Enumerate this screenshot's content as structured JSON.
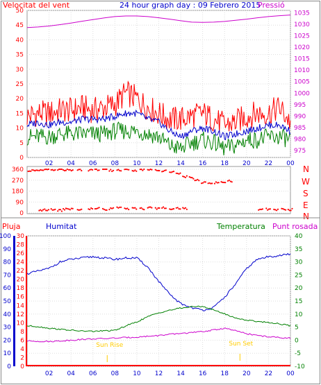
{
  "header": {
    "left_title": "Velocitat del vent",
    "center_title": "24 hour graph day : 09 Febrero 2015",
    "right_title": "Pressió"
  },
  "direction_labels": [
    "N",
    "W",
    "S",
    "E",
    "N"
  ],
  "lower_header": {
    "rain_label": "Pluja",
    "humidity_label": "Humitat",
    "temperature_label": "Temperatura",
    "dew_label": "Punt rosada"
  },
  "annotations": {
    "sunrise": "Sun Rise",
    "sunset": "Sun Set"
  },
  "colors": {
    "wind_gust": "#ff0000",
    "wind_avg": "#0000cc",
    "wind_min": "#008000",
    "pressure": "#cc00cc",
    "direction": "#ff0000",
    "humidity": "#0000cc",
    "temperature": "#008000",
    "dew": "#cc00cc",
    "rain": "#ff0000",
    "sun": "#ffcc00"
  },
  "chart_data": [
    {
      "type": "line",
      "name_hint": "wind-pressure",
      "x_ticks": [
        "02",
        "04",
        "06",
        "08",
        "10",
        "12",
        "14",
        "16",
        "18",
        "20",
        "22",
        "00"
      ],
      "y_left_ticks": [
        0,
        5,
        10,
        15,
        20,
        25,
        30,
        35,
        40,
        45,
        50
      ],
      "y_left_lim": [
        0,
        50
      ],
      "y_right_ticks": [
        975,
        980,
        985,
        990,
        995,
        1000,
        1005,
        1010,
        1015,
        1020,
        1025,
        1030,
        1035
      ],
      "y_right_lim": [
        972,
        1036
      ],
      "hours": [
        0,
        1,
        2,
        3,
        4,
        5,
        6,
        7,
        8,
        9,
        10,
        11,
        12,
        13,
        14,
        15,
        16,
        17,
        18,
        19,
        20,
        21,
        22,
        23,
        24
      ],
      "series": [
        {
          "key": "gust",
          "values": [
            14,
            15,
            15,
            16,
            16,
            17,
            16,
            17,
            18,
            22,
            20,
            17,
            15,
            13,
            13,
            14,
            15,
            13,
            11,
            12,
            14,
            15,
            15,
            17,
            12
          ]
        },
        {
          "key": "avg",
          "values": [
            11,
            12,
            11,
            12,
            12,
            13,
            13,
            13,
            14,
            15,
            15,
            13,
            12,
            9,
            7,
            9,
            10,
            9,
            7,
            8,
            9,
            10,
            11,
            11,
            9
          ]
        },
        {
          "key": "min",
          "values": [
            7,
            7,
            7,
            8,
            8,
            8,
            8,
            8,
            9,
            9,
            9,
            8,
            7,
            4,
            3,
            5,
            6,
            5,
            3,
            4,
            6,
            6,
            7,
            7,
            6
          ]
        },
        {
          "key": "pressure",
          "values": [
            1028.5,
            1028.8,
            1029.2,
            1029.8,
            1030.5,
            1031.3,
            1032,
            1032.7,
            1033.3,
            1033.6,
            1033.6,
            1033.3,
            1032.8,
            1032.2,
            1031.5,
            1030.9,
            1030.8,
            1030.9,
            1031.2,
            1031.7,
            1032.2,
            1032.8,
            1033.3,
            1033.7,
            1034
          ]
        }
      ]
    },
    {
      "type": "scatter",
      "name_hint": "wind-direction",
      "y_ticks": [
        0,
        90,
        180,
        270,
        360
      ],
      "y_lim": [
        0,
        360
      ],
      "hours": [
        0.1,
        0.6,
        1.1,
        1.6,
        2.2,
        2.8,
        3.3,
        3.8,
        4.6,
        5.6,
        6.2,
        6.9,
        7.5,
        8.2,
        8.9,
        9.6,
        10.3,
        11.0,
        11.7,
        12.3,
        13.0,
        13.6,
        14.2,
        14.8,
        15.3,
        15.9,
        16.5,
        17.1,
        17.7,
        18.3,
        19.0,
        19.7,
        20.4,
        21.1,
        21.8,
        22.5,
        23.2,
        23.8
      ],
      "upper": [
        350,
        345,
        352,
        356,
        348,
        358,
        355,
        350,
        356,
        352,
        358,
        355,
        350,
        353,
        356,
        349,
        357,
        360,
        352,
        348,
        340,
        320,
        300,
        290,
        270,
        250,
        245,
        250,
        255,
        262,
        null,
        null,
        null,
        null,
        null,
        null,
        null,
        null
      ],
      "lower": [
        null,
        null,
        20,
        25,
        28,
        20,
        30,
        32,
        28,
        35,
        38,
        30,
        35,
        40,
        33,
        38,
        36,
        42,
        38,
        45,
        30,
        40,
        35,
        null,
        null,
        null,
        null,
        null,
        null,
        null,
        null,
        null,
        null,
        28,
        30,
        25,
        32,
        28
      ]
    },
    {
      "type": "line",
      "name_hint": "humidity-temperature",
      "y_left_ticks": [
        0,
        10,
        20,
        30,
        40,
        50,
        60,
        70,
        80,
        90,
        100
      ],
      "y_left_lim": [
        0,
        100
      ],
      "y_mid_ticks": [
        0,
        2,
        4,
        6,
        8,
        10,
        12,
        14,
        16,
        18,
        20,
        22,
        24,
        26,
        28,
        30
      ],
      "y_right_ticks": [
        -10,
        -5,
        0,
        5,
        10,
        15,
        20,
        25,
        30,
        35,
        40
      ],
      "y_right_lim": [
        -10,
        40
      ],
      "hours": [
        0,
        1,
        2,
        3,
        4,
        5,
        6,
        7,
        8,
        9,
        10,
        11,
        12,
        13,
        14,
        15,
        16,
        17,
        18,
        19,
        20,
        21,
        22,
        23,
        24
      ],
      "series": [
        {
          "key": "humidity",
          "values": [
            71,
            73,
            75,
            80,
            82,
            83,
            84,
            83,
            82,
            83,
            83,
            76,
            65,
            55,
            48,
            45,
            43,
            45,
            53,
            63,
            75,
            82,
            84,
            85,
            86
          ]
        },
        {
          "key": "temperature",
          "values": [
            5.5,
            5.2,
            4.6,
            4.2,
            3.8,
            3.5,
            3.4,
            3.6,
            3.7,
            5.5,
            7,
            9,
            10.5,
            11.5,
            12.3,
            12.8,
            13,
            11.6,
            10.1,
            8.5,
            7.7,
            7.2,
            6.8,
            6.3,
            5.5
          ]
        },
        {
          "key": "dew",
          "values": [
            -0.3,
            -0.4,
            -0.5,
            -0.3,
            0.0,
            0.3,
            0.5,
            0.6,
            0.8,
            1.0,
            1.2,
            1.5,
            1.8,
            2.2,
            2.6,
            2.9,
            3.3,
            3.9,
            4.6,
            3.6,
            2.5,
            1.8,
            1.3,
            1.0,
            0.8
          ]
        },
        {
          "key": "rain",
          "values": [
            0,
            0,
            0,
            0,
            0,
            0,
            0,
            0,
            0,
            0,
            0,
            0,
            0,
            0,
            0,
            0,
            0,
            0,
            0,
            0,
            0,
            0,
            0,
            0,
            0
          ]
        }
      ],
      "sunrise_hour": 7.3,
      "sunset_hour": 19.4
    }
  ]
}
